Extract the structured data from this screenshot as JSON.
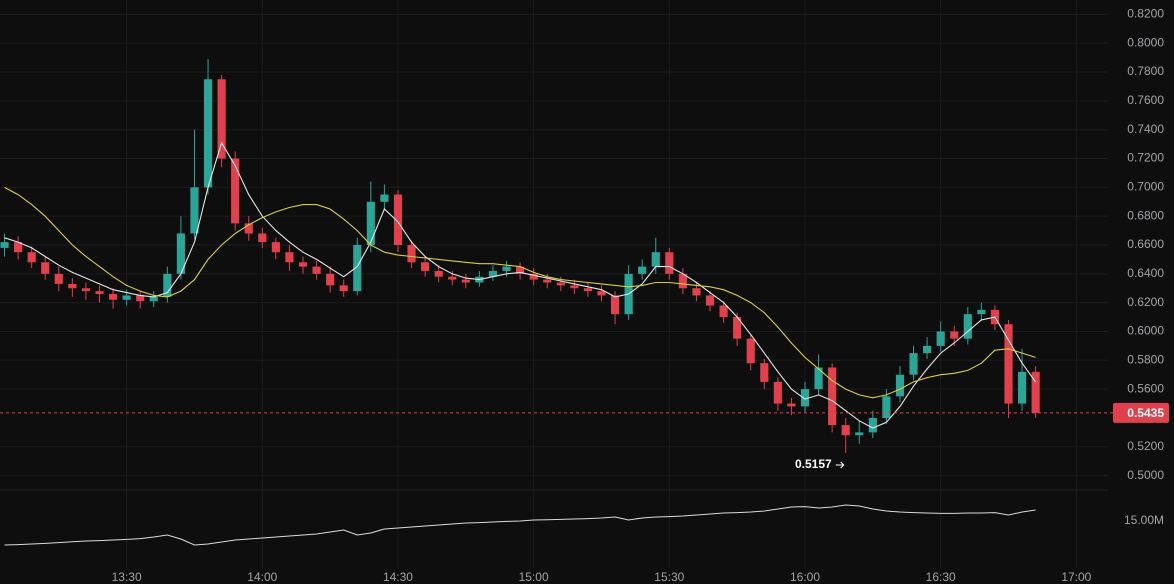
{
  "chart_data": {
    "type": "candlestick",
    "x": [
      "13:03",
      "13:06",
      "13:09",
      "13:12",
      "13:15",
      "13:18",
      "13:21",
      "13:24",
      "13:27",
      "13:30",
      "13:33",
      "13:36",
      "13:39",
      "13:42",
      "13:45",
      "13:48",
      "13:51",
      "13:54",
      "13:57",
      "14:00",
      "14:03",
      "14:06",
      "14:09",
      "14:12",
      "14:15",
      "14:18",
      "14:21",
      "14:24",
      "14:27",
      "14:30",
      "14:33",
      "14:36",
      "14:39",
      "14:42",
      "14:45",
      "14:48",
      "14:51",
      "14:54",
      "14:57",
      "15:00",
      "15:03",
      "15:06",
      "15:09",
      "15:12",
      "15:15",
      "15:18",
      "15:21",
      "15:24",
      "15:27",
      "15:30",
      "15:33",
      "15:36",
      "15:39",
      "15:42",
      "15:45",
      "15:48",
      "15:51",
      "15:54",
      "15:57",
      "16:00",
      "16:03",
      "16:06",
      "16:09",
      "16:12",
      "16:15",
      "16:18",
      "16:21",
      "16:24",
      "16:27",
      "16:30",
      "16:33",
      "16:36",
      "16:39",
      "16:42",
      "16:45",
      "16:48",
      "16:51"
    ],
    "open": [
      0.658,
      0.662,
      0.655,
      0.648,
      0.64,
      0.633,
      0.63,
      0.628,
      0.626,
      0.622,
      0.625,
      0.621,
      0.624,
      0.64,
      0.668,
      0.7,
      0.775,
      0.72,
      0.675,
      0.668,
      0.662,
      0.655,
      0.648,
      0.645,
      0.64,
      0.632,
      0.628,
      0.66,
      0.69,
      0.695,
      0.66,
      0.648,
      0.642,
      0.638,
      0.636,
      0.634,
      0.638,
      0.642,
      0.645,
      0.64,
      0.636,
      0.634,
      0.632,
      0.63,
      0.628,
      0.625,
      0.612,
      0.64,
      0.645,
      0.655,
      0.64,
      0.63,
      0.625,
      0.618,
      0.61,
      0.595,
      0.578,
      0.565,
      0.55,
      0.548,
      0.56,
      0.575,
      0.535,
      0.528,
      0.53,
      0.54,
      0.555,
      0.57,
      0.585,
      0.59,
      0.6,
      0.595,
      0.612,
      0.615,
      0.605,
      0.55,
      0.572
    ],
    "high": [
      0.668,
      0.666,
      0.659,
      0.652,
      0.645,
      0.637,
      0.634,
      0.632,
      0.63,
      0.629,
      0.628,
      0.628,
      0.645,
      0.68,
      0.74,
      0.789,
      0.778,
      0.725,
      0.68,
      0.672,
      0.665,
      0.66,
      0.652,
      0.649,
      0.645,
      0.636,
      0.665,
      0.704,
      0.702,
      0.698,
      0.663,
      0.652,
      0.646,
      0.642,
      0.64,
      0.642,
      0.646,
      0.649,
      0.648,
      0.644,
      0.64,
      0.638,
      0.636,
      0.634,
      0.632,
      0.628,
      0.646,
      0.65,
      0.665,
      0.658,
      0.644,
      0.634,
      0.628,
      0.621,
      0.613,
      0.598,
      0.581,
      0.568,
      0.554,
      0.565,
      0.584,
      0.578,
      0.54,
      0.538,
      0.545,
      0.56,
      0.576,
      0.59,
      0.596,
      0.607,
      0.604,
      0.617,
      0.62,
      0.618,
      0.608,
      0.588,
      0.576
    ],
    "low": [
      0.652,
      0.65,
      0.644,
      0.636,
      0.628,
      0.624,
      0.622,
      0.62,
      0.616,
      0.618,
      0.616,
      0.617,
      0.62,
      0.636,
      0.664,
      0.695,
      0.714,
      0.67,
      0.663,
      0.658,
      0.65,
      0.642,
      0.64,
      0.636,
      0.627,
      0.624,
      0.625,
      0.655,
      0.684,
      0.655,
      0.644,
      0.638,
      0.634,
      0.632,
      0.63,
      0.631,
      0.635,
      0.638,
      0.636,
      0.632,
      0.63,
      0.628,
      0.626,
      0.624,
      0.621,
      0.605,
      0.608,
      0.636,
      0.64,
      0.636,
      0.626,
      0.621,
      0.614,
      0.606,
      0.59,
      0.573,
      0.56,
      0.545,
      0.542,
      0.544,
      0.556,
      0.53,
      0.5157,
      0.522,
      0.526,
      0.536,
      0.551,
      0.566,
      0.581,
      0.586,
      0.59,
      0.591,
      0.608,
      0.601,
      0.54,
      0.545,
      0.54
    ],
    "close": [
      0.662,
      0.655,
      0.648,
      0.64,
      0.633,
      0.63,
      0.628,
      0.626,
      0.622,
      0.625,
      0.621,
      0.624,
      0.64,
      0.668,
      0.7,
      0.775,
      0.72,
      0.675,
      0.668,
      0.662,
      0.655,
      0.648,
      0.645,
      0.64,
      0.632,
      0.628,
      0.66,
      0.69,
      0.695,
      0.66,
      0.648,
      0.642,
      0.638,
      0.636,
      0.634,
      0.638,
      0.642,
      0.645,
      0.64,
      0.636,
      0.634,
      0.632,
      0.63,
      0.628,
      0.625,
      0.612,
      0.64,
      0.645,
      0.655,
      0.64,
      0.63,
      0.625,
      0.618,
      0.61,
      0.595,
      0.578,
      0.565,
      0.55,
      0.548,
      0.56,
      0.575,
      0.535,
      0.528,
      0.53,
      0.54,
      0.555,
      0.57,
      0.585,
      0.59,
      0.6,
      0.595,
      0.612,
      0.615,
      0.605,
      0.55,
      0.572,
      0.5435
    ],
    "up_color": "#2ba597",
    "down_color": "#e0414d",
    "series": [
      {
        "color": "#e6e6e6",
        "values": [
          0.665,
          0.662,
          0.658,
          0.652,
          0.646,
          0.641,
          0.637,
          0.633,
          0.629,
          0.627,
          0.625,
          0.624,
          0.627,
          0.64,
          0.662,
          0.7,
          0.731,
          0.715,
          0.695,
          0.68,
          0.67,
          0.662,
          0.655,
          0.65,
          0.644,
          0.638,
          0.645,
          0.662,
          0.685,
          0.676,
          0.662,
          0.652,
          0.645,
          0.64,
          0.637,
          0.636,
          0.638,
          0.64,
          0.641,
          0.639,
          0.637,
          0.635,
          0.633,
          0.631,
          0.629,
          0.624,
          0.626,
          0.633,
          0.645,
          0.645,
          0.64,
          0.634,
          0.627,
          0.62,
          0.61,
          0.598,
          0.585,
          0.572,
          0.56,
          0.553,
          0.556,
          0.552,
          0.545,
          0.538,
          0.533,
          0.537,
          0.548,
          0.562,
          0.574,
          0.585,
          0.592,
          0.6,
          0.608,
          0.61,
          0.594,
          0.578,
          0.565
        ]
      },
      {
        "color": "#d9cf3a",
        "values": [
          0.7,
          0.695,
          0.688,
          0.68,
          0.67,
          0.66,
          0.652,
          0.645,
          0.638,
          0.632,
          0.628,
          0.625,
          0.624,
          0.628,
          0.636,
          0.65,
          0.66,
          0.668,
          0.674,
          0.679,
          0.683,
          0.686,
          0.688,
          0.688,
          0.685,
          0.678,
          0.67,
          0.66,
          0.655,
          0.653,
          0.652,
          0.651,
          0.65,
          0.649,
          0.648,
          0.647,
          0.647,
          0.646,
          0.645,
          0.641,
          0.638,
          0.636,
          0.635,
          0.634,
          0.633,
          0.632,
          0.631,
          0.632,
          0.634,
          0.634,
          0.633,
          0.632,
          0.631,
          0.629,
          0.625,
          0.62,
          0.613,
          0.603,
          0.592,
          0.582,
          0.574,
          0.566,
          0.56,
          0.556,
          0.554,
          0.556,
          0.56,
          0.565,
          0.568,
          0.57,
          0.571,
          0.573,
          0.578,
          0.587,
          0.588,
          0.585,
          0.582
        ]
      }
    ],
    "xlim": [
      "13:02",
      "17:07"
    ],
    "xticks": [
      "13:30",
      "14:00",
      "14:30",
      "15:00",
      "15:30",
      "16:00",
      "16:30",
      "17:00"
    ],
    "ylim": [
      0.49,
      0.83
    ],
    "yticks": [
      {
        "value": 0.5,
        "label": "0.5000"
      },
      {
        "value": 0.52,
        "label": "0.5200"
      },
      {
        "value": 0.56,
        "label": "0.5600"
      },
      {
        "value": 0.58,
        "label": "0.5800"
      },
      {
        "value": 0.6,
        "label": "0.6000"
      },
      {
        "value": 0.62,
        "label": "0.6200"
      },
      {
        "value": 0.64,
        "label": "0.6400"
      },
      {
        "value": 0.66,
        "label": "0.6600"
      },
      {
        "value": 0.68,
        "label": "0.6800"
      },
      {
        "value": 0.7,
        "label": "0.7000"
      },
      {
        "value": 0.72,
        "label": "0.7200"
      },
      {
        "value": 0.74,
        "label": "0.7400"
      },
      {
        "value": 0.76,
        "label": "0.7600"
      },
      {
        "value": 0.78,
        "label": "0.7800"
      },
      {
        "value": 0.8,
        "label": "0.8000"
      },
      {
        "value": 0.82,
        "label": "0.8200"
      }
    ],
    "grid": true,
    "indicator": {
      "color": "#dcdcdc",
      "values": [
        13.8,
        13.82,
        13.85,
        13.88,
        13.92,
        13.96,
        14.0,
        14.02,
        14.05,
        14.08,
        14.12,
        14.2,
        14.3,
        14.1,
        13.8,
        13.85,
        13.95,
        14.05,
        14.1,
        14.15,
        14.2,
        14.25,
        14.3,
        14.35,
        14.45,
        14.55,
        14.3,
        14.4,
        14.6,
        14.65,
        14.7,
        14.75,
        14.8,
        14.85,
        14.9,
        14.92,
        14.95,
        14.98,
        15.0,
        15.05,
        15.06,
        15.08,
        15.1,
        15.12,
        15.15,
        15.2,
        15.05,
        15.15,
        15.2,
        15.22,
        15.25,
        15.3,
        15.35,
        15.4,
        15.42,
        15.45,
        15.5,
        15.6,
        15.7,
        15.72,
        15.65,
        15.7,
        15.8,
        15.75,
        15.6,
        15.5,
        15.45,
        15.42,
        15.4,
        15.38,
        15.38,
        15.4,
        15.4,
        15.42,
        15.3,
        15.45,
        15.55
      ],
      "ylim": [
        12.05,
        16.55
      ],
      "yticks": [
        {
          "value": 15,
          "label": "15.00M"
        }
      ]
    }
  }
}
